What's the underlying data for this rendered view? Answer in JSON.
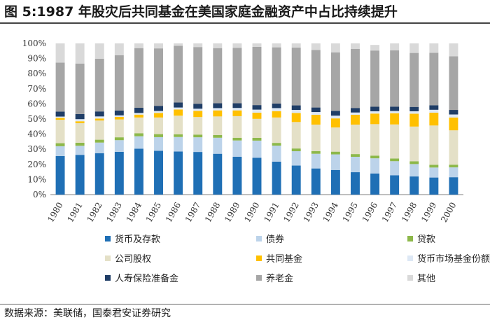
{
  "title": "图 5:1987 年股灾后共同基金在美国家庭金融资产中占比持续提升",
  "source": "数据来源：美联储，国泰君安证券研究",
  "chart_data": {
    "type": "bar",
    "stacked": true,
    "categories": [
      "1980",
      "1981",
      "1982",
      "1983",
      "1984",
      "1985",
      "1986",
      "1987",
      "1988",
      "1989",
      "1990",
      "1991",
      "1992",
      "1993",
      "1994",
      "1995",
      "1996",
      "1997",
      "1998",
      "1999",
      "2000"
    ],
    "ylim": [
      0,
      100
    ],
    "yticks": [
      "0%",
      "10%",
      "20%",
      "30%",
      "40%",
      "50%",
      "60%",
      "70%",
      "80%",
      "90%",
      "100%"
    ],
    "legend_position": "bottom",
    "series": [
      {
        "name": "货币及存款",
        "color": "#1f6fb5",
        "values": [
          25.5,
          26.3,
          27.4,
          28.3,
          30.4,
          29.0,
          28.5,
          28.2,
          27.0,
          25.0,
          24.4,
          21.8,
          19.2,
          17.3,
          16.3,
          14.8,
          14.0,
          12.8,
          12.0,
          11.3,
          11.5
        ]
      },
      {
        "name": "债券",
        "color": "#bcd3ea",
        "values": [
          6.5,
          6.0,
          7.0,
          7.7,
          8.2,
          9.0,
          9.6,
          9.7,
          10.6,
          10.8,
          11.3,
          10.6,
          9.5,
          9.7,
          10.3,
          10.2,
          10.0,
          9.3,
          8.2,
          6.6,
          6.5
        ]
      },
      {
        "name": "贷款",
        "color": "#8db84a",
        "values": [
          2.0,
          2.0,
          1.9,
          1.9,
          2.0,
          2.0,
          1.8,
          1.8,
          1.8,
          1.8,
          1.8,
          1.8,
          1.8,
          1.8,
          1.8,
          1.8,
          1.8,
          1.8,
          1.8,
          1.8,
          1.8
        ]
      },
      {
        "name": "公司股权",
        "color": "#e4e0c7",
        "values": [
          15.5,
          13.0,
          12.7,
          11.8,
          10.4,
          11.0,
          12.3,
          11.6,
          12.3,
          14.3,
          12.6,
          16.8,
          17.5,
          17.5,
          16.0,
          19.5,
          20.8,
          22.5,
          23.0,
          26.0,
          22.7
        ]
      },
      {
        "name": "共同基金",
        "color": "#ffc000",
        "values": [
          1.2,
          1.2,
          1.3,
          1.7,
          1.9,
          3.0,
          4.1,
          4.1,
          4.0,
          3.8,
          4.1,
          4.2,
          6.0,
          6.5,
          6.0,
          6.5,
          7.0,
          7.4,
          8.5,
          8.5,
          8.5
        ]
      },
      {
        "name": "货币市场基金份额",
        "color": "#dde8f5",
        "values": [
          0.9,
          1.4,
          1.4,
          1.0,
          1.1,
          1.3,
          1.3,
          1.4,
          1.5,
          1.6,
          2.0,
          2.0,
          2.0,
          1.8,
          1.8,
          1.5,
          1.5,
          1.5,
          1.6,
          1.9,
          2.0
        ]
      },
      {
        "name": "人寿保险准备金",
        "color": "#1f3d66",
        "values": [
          3.3,
          3.4,
          3.3,
          3.2,
          3.4,
          3.4,
          3.3,
          3.3,
          3.2,
          3.1,
          3.0,
          3.0,
          3.0,
          3.0,
          3.2,
          3.0,
          3.0,
          2.9,
          2.9,
          3.0,
          3.0
        ]
      },
      {
        "name": "养老金",
        "color": "#a6a6a6",
        "values": [
          32.4,
          33.4,
          34.9,
          36.6,
          39.5,
          38.0,
          37.5,
          37.5,
          36.5,
          36.7,
          38.5,
          37.2,
          38.2,
          38.1,
          38.7,
          39.1,
          37.2,
          37.2,
          35.7,
          34.7,
          35.5
        ]
      },
      {
        "name": "其他",
        "color": "#d9d9d9",
        "values": [
          12.7,
          13.3,
          10.1,
          7.8,
          3.1,
          3.3,
          1.6,
          2.4,
          3.1,
          2.9,
          2.3,
          2.6,
          2.8,
          4.3,
          5.9,
          3.6,
          3.7,
          4.6,
          6.3,
          6.2,
          8.5
        ]
      }
    ]
  }
}
